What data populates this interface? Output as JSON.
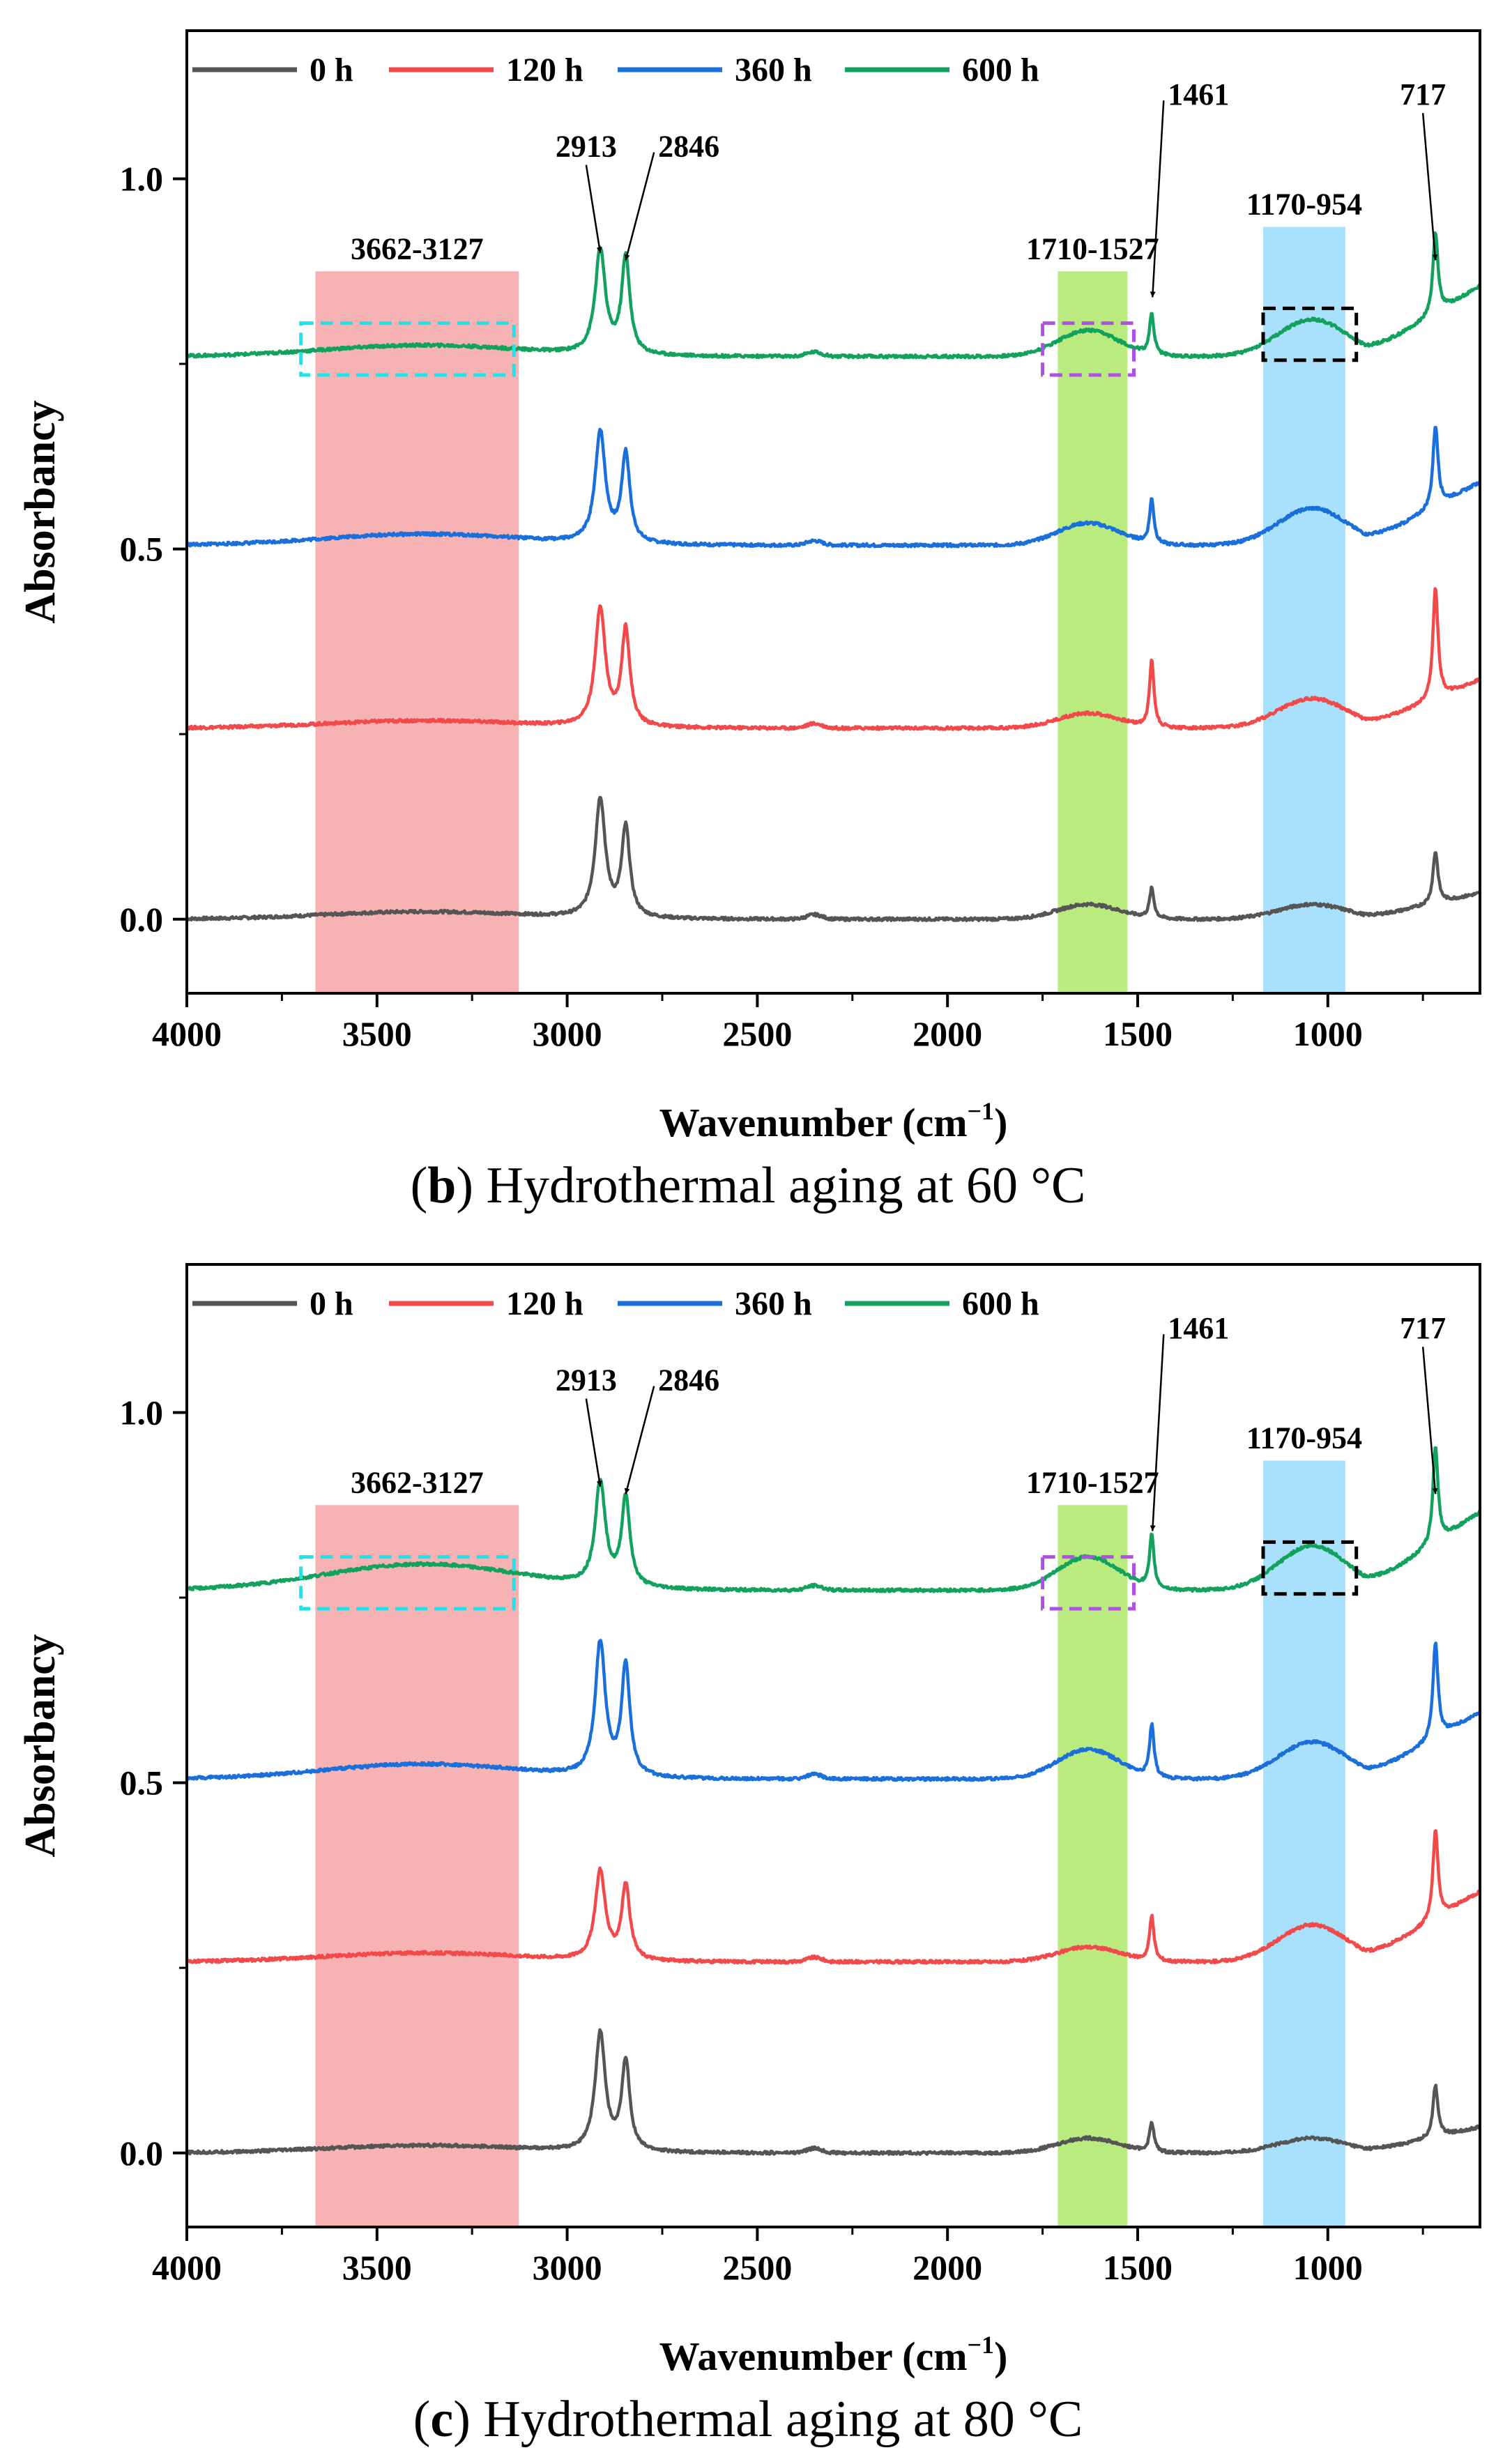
{
  "chart_data": [
    {
      "type": "line",
      "caption": {
        "letter": "b",
        "text": "Hydrothermal aging at 60 °C"
      },
      "xlabel": "Wavenumber (cm",
      "xlabel_sup": "−1",
      "xlabel_close": ")",
      "ylabel": "Absorbancy",
      "xlim": [
        4000,
        600
      ],
      "ylim": [
        -0.1,
        1.2
      ],
      "x_reversed": true,
      "x_ticks": [
        4000,
        3500,
        3000,
        2500,
        2000,
        1500,
        1000
      ],
      "x_tick_labels": [
        "4000",
        "3500",
        "3000",
        "2500",
        "2000",
        "1500",
        "1000"
      ],
      "y_ticks": [
        0.0,
        0.5,
        1.0
      ],
      "y_tick_labels": [
        "0.0",
        "0.5",
        "1.0"
      ],
      "legend_position": "top",
      "series": [
        {
          "name": "0 h",
          "color": "#555555",
          "offset": 0.0,
          "features": {
            "oh": 0.01,
            "ch2a": 0.16,
            "ch2s": 0.12,
            "co": 0.02,
            "b1461": 0.04,
            "cc": 0.02,
            "r717": 0.07,
            "tail": 0.035
          }
        },
        {
          "name": "120 h",
          "color": "#f24a4a",
          "offset": 0.258,
          "features": {
            "oh": 0.01,
            "ch2a": 0.16,
            "ch2s": 0.13,
            "co": 0.02,
            "b1461": 0.09,
            "cc": 0.04,
            "r717": 0.15,
            "tail": 0.065
          }
        },
        {
          "name": "360 h",
          "color": "#1a6fdb",
          "offset": 0.505,
          "features": {
            "oh": 0.015,
            "ch2a": 0.15,
            "ch2s": 0.12,
            "co": 0.03,
            "b1461": 0.06,
            "cc": 0.05,
            "r717": 0.11,
            "tail": 0.085
          }
        },
        {
          "name": "600 h",
          "color": "#12a25e",
          "offset": 0.76,
          "features": {
            "oh": 0.015,
            "ch2a": 0.14,
            "ch2s": 0.13,
            "co": 0.035,
            "b1461": 0.055,
            "cc": 0.05,
            "r717": 0.11,
            "tail": 0.095
          }
        }
      ],
      "regions": [
        {
          "label": "3662-3127",
          "from": 3662,
          "to": 3127,
          "y_top": 0.875,
          "color": "#f7b3b3"
        },
        {
          "label": "1710-1527",
          "from": 1710,
          "to": 1527,
          "y_top": 0.875,
          "color": "#b9eb7e"
        },
        {
          "label": "1170-954",
          "from": 1170,
          "to": 954,
          "y_top": 0.935,
          "color": "#a9e0fb"
        }
      ],
      "dashed_boxes": [
        {
          "from": 3700,
          "to": 3140,
          "y1": 0.735,
          "y2": 0.805,
          "color": "#1ee3ec"
        },
        {
          "from": 1750,
          "to": 1510,
          "y1": 0.735,
          "y2": 0.805,
          "color": "#b04fe8"
        },
        {
          "from": 1170,
          "to": 925,
          "y1": 0.755,
          "y2": 0.825,
          "color": "#000000"
        }
      ],
      "annotations": [
        {
          "label": "2913",
          "peak": 2913,
          "peak_y": 0.9,
          "text_x": 2950,
          "text_y": 1.03
        },
        {
          "label": "2846",
          "peak": 2846,
          "peak_y": 0.89,
          "text_x": 2680,
          "text_y": 1.03
        },
        {
          "label": "1461",
          "peak": 1461,
          "peak_y": 0.84,
          "text_x": 1340,
          "text_y": 1.1
        },
        {
          "label": "717",
          "peak": 717,
          "peak_y": 0.89,
          "text_x": 750,
          "text_y": 1.1
        }
      ]
    },
    {
      "type": "line",
      "caption": {
        "letter": "c",
        "text": "Hydrothermal aging at 80 °C"
      },
      "xlabel": "Wavenumber (cm",
      "xlabel_sup": "−1",
      "xlabel_close": ")",
      "ylabel": "Absorbancy",
      "xlim": [
        4000,
        600
      ],
      "ylim": [
        -0.1,
        1.2
      ],
      "x_reversed": true,
      "x_ticks": [
        4000,
        3500,
        3000,
        2500,
        2000,
        1500,
        1000
      ],
      "x_tick_labels": [
        "4000",
        "3500",
        "3000",
        "2500",
        "2000",
        "1500",
        "1000"
      ],
      "y_ticks": [
        0.0,
        0.5,
        1.0
      ],
      "y_tick_labels": [
        "0.0",
        "0.5",
        "1.0"
      ],
      "legend_position": "top",
      "series": [
        {
          "name": "0 h",
          "color": "#555555",
          "offset": 0.0,
          "features": {
            "oh": 0.01,
            "ch2a": 0.16,
            "ch2s": 0.12,
            "co": 0.02,
            "b1461": 0.04,
            "cc": 0.02,
            "r717": 0.07,
            "tail": 0.035
          }
        },
        {
          "name": "120 h",
          "color": "#f24a4a",
          "offset": 0.258,
          "features": {
            "oh": 0.012,
            "ch2a": 0.12,
            "ch2s": 0.1,
            "co": 0.02,
            "b1461": 0.06,
            "cc": 0.05,
            "r717": 0.12,
            "tail": 0.095
          }
        },
        {
          "name": "360 h",
          "color": "#1a6fdb",
          "offset": 0.505,
          "features": {
            "oh": 0.02,
            "ch2a": 0.18,
            "ch2s": 0.15,
            "co": 0.04,
            "b1461": 0.07,
            "cc": 0.05,
            "r717": 0.13,
            "tail": 0.09
          }
        },
        {
          "name": "600 h",
          "color": "#12a25e",
          "offset": 0.76,
          "features": {
            "oh": 0.035,
            "ch2a": 0.14,
            "ch2s": 0.12,
            "co": 0.045,
            "b1461": 0.07,
            "cc": 0.06,
            "r717": 0.13,
            "tail": 0.105
          }
        }
      ],
      "regions": [
        {
          "label": "3662-3127",
          "from": 3662,
          "to": 3127,
          "y_top": 0.875,
          "color": "#f7b3b3"
        },
        {
          "label": "1710-1527",
          "from": 1710,
          "to": 1527,
          "y_top": 0.875,
          "color": "#b9eb7e"
        },
        {
          "label": "1170-954",
          "from": 1170,
          "to": 954,
          "y_top": 0.935,
          "color": "#a9e0fb"
        }
      ],
      "dashed_boxes": [
        {
          "from": 3700,
          "to": 3140,
          "y1": 0.735,
          "y2": 0.805,
          "color": "#1ee3ec"
        },
        {
          "from": 1750,
          "to": 1510,
          "y1": 0.735,
          "y2": 0.805,
          "color": "#b04fe8"
        },
        {
          "from": 1170,
          "to": 925,
          "y1": 0.755,
          "y2": 0.825,
          "color": "#000000"
        }
      ],
      "annotations": [
        {
          "label": "2913",
          "peak": 2913,
          "peak_y": 0.9,
          "text_x": 2950,
          "text_y": 1.03
        },
        {
          "label": "2846",
          "peak": 2846,
          "peak_y": 0.89,
          "text_x": 2680,
          "text_y": 1.03
        },
        {
          "label": "1461",
          "peak": 1461,
          "peak_y": 0.84,
          "text_x": 1340,
          "text_y": 1.1
        },
        {
          "label": "717",
          "peak": 717,
          "peak_y": 0.89,
          "text_x": 750,
          "text_y": 1.1
        }
      ]
    }
  ]
}
